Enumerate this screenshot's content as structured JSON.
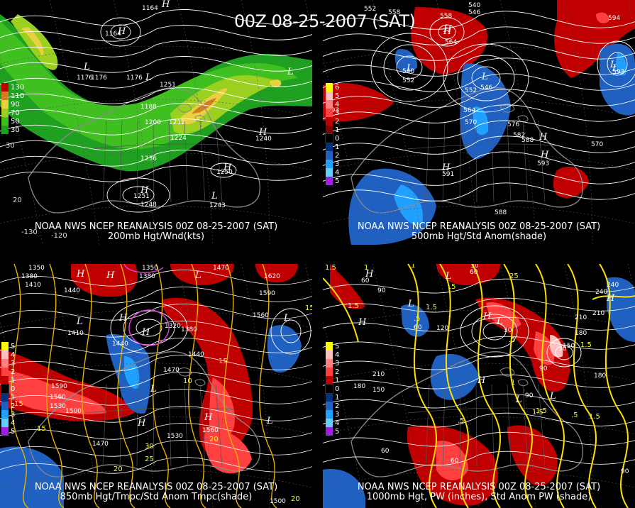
{
  "title": "00Z 08-25-2007 (SAT)",
  "panels": [
    {
      "id": "p1",
      "caption1": "NOAA NWS NCEP REANALYSIS 00Z 08-25-2007 (SAT)",
      "caption2": "200mb Hgt/Wnd(kts)",
      "legend": [
        "130",
        "110",
        "90",
        "70",
        "50",
        "30"
      ],
      "legend_colors": [
        "#c00000",
        "#d08020",
        "#e8d040",
        "#9cd020",
        "#40c020",
        "#20a020"
      ],
      "lon_labels": [
        "-130",
        "-120",
        "20",
        "30"
      ],
      "contour_labels": [
        "1164",
        "1164",
        "1176",
        "1176",
        "1176",
        "1188",
        "1200",
        "1212",
        "1224",
        "1236",
        "1248",
        "1251",
        "1240",
        "1250",
        "1243",
        "1251"
      ],
      "centers": [
        "H",
        "L",
        "L",
        "L",
        "H",
        "H",
        "H",
        "L",
        "H"
      ]
    },
    {
      "id": "p2",
      "caption1": "NOAA NWS NCEP REANALYSIS 00Z 08-25-2007 (SAT)",
      "caption2": "500mb Hgt/Std Anom(shade)",
      "legend": [
        "6",
        "5",
        "4",
        "3",
        "2",
        "1",
        "0",
        "1",
        "2",
        "3",
        "4",
        "5"
      ],
      "legend_colors": [
        "#ffff00",
        "#ffc0c0",
        "#ff8080",
        "#ff4040",
        "#c00000",
        "#800000",
        "#000000",
        "#003080",
        "#2060c0",
        "#20a0ff",
        "#60d0ff",
        "#a020e0"
      ],
      "contour_labels": [
        "552",
        "558",
        "540",
        "546",
        "558",
        "564",
        "594",
        "540",
        "552",
        "546",
        "552",
        "564",
        "570",
        "576",
        "582",
        "588",
        "570",
        "593",
        "593",
        "593",
        "591",
        "588"
      ],
      "centers": [
        "H",
        "L",
        "L",
        "L",
        "H",
        "H",
        "H",
        "H",
        "L"
      ]
    },
    {
      "id": "p3",
      "caption1": "NOAA NWS NCEP REANALYSIS 00Z 08-25-2007 (SAT)",
      "caption2": "850mb Hgt/Tmpc/Std Anom Tmpc(shade)",
      "legend": [
        "5",
        "4",
        "3",
        "2",
        "1",
        "0",
        "1",
        "2",
        "3",
        "4",
        "5"
      ],
      "legend_colors": [
        "#ffff00",
        "#ffc0c0",
        "#ff8080",
        "#ff4040",
        "#c00000",
        "#000000",
        "#003080",
        "#2060c0",
        "#20a0ff",
        "#60d0ff",
        "#a020e0"
      ],
      "contour_labels": [
        "1350",
        "1350",
        "1470",
        "1380",
        "1380",
        "1410",
        "1440",
        "1620",
        "1590",
        "1410",
        "1320",
        "1380",
        "1560",
        "1440",
        "1470",
        "1590",
        "1560",
        "1530",
        "1500",
        "1530",
        "1560",
        "1470",
        "1500",
        "1440"
      ],
      "temp_labels": [
        "15",
        "15",
        "15",
        "10",
        "20",
        "25",
        "30",
        "20",
        "15",
        "20"
      ],
      "centers": [
        "H",
        "H",
        "L",
        "L",
        "L",
        "H",
        "L",
        "H",
        "H",
        "L",
        "H"
      ]
    },
    {
      "id": "p4",
      "caption1": "NOAA NWS NCEP REANALYSIS 00Z 08-25-2007 (SAT)",
      "caption2": "1000mb Hgt, PW (inches), Std Anom PW (shade)",
      "legend": [
        "5",
        "4",
        "3",
        "2",
        "1",
        "0",
        "1",
        "2",
        "3",
        "4",
        "5"
      ],
      "legend_colors": [
        "#ffff00",
        "#ffc0c0",
        "#ff8080",
        "#ff4040",
        "#c00000",
        "#000000",
        "#003080",
        "#2060c0",
        "#20a0ff",
        "#60d0ff",
        "#a020e0"
      ],
      "contour_labels": [
        "30",
        "60",
        "90",
        "60",
        "60",
        "30",
        "240",
        "210",
        "180",
        "150",
        "120",
        "60",
        "210",
        "180",
        "150",
        "90",
        "60",
        "30",
        "90",
        "240",
        "210",
        "180",
        "90"
      ],
      "pw_labels": [
        "1",
        "1.5",
        "1.5",
        "1.5",
        ".5",
        ".5",
        "25",
        "1",
        ".5",
        "1.5",
        "1.5",
        ".5",
        "1.5",
        "1.5",
        ".5",
        "1"
      ],
      "centers": [
        "H",
        "L",
        "L",
        "H",
        "L",
        "H",
        "H",
        "L",
        "L",
        "H"
      ]
    }
  ]
}
